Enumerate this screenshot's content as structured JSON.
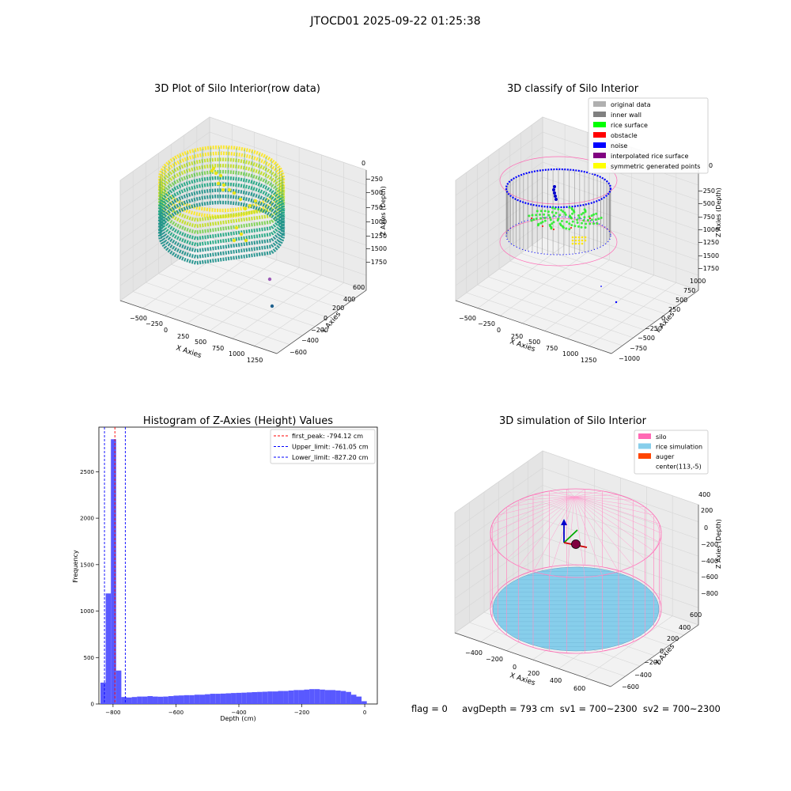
{
  "suptitle": "JTOCD01 2025-09-22 01:25:38",
  "status_text": "flag = 0     avgDepth = 793 cm  sv1 = 700~2300  sv2 = 700~2300",
  "colors": {
    "viridis_low": "#21918c",
    "viridis_mid": "#5ec962",
    "viridis_high": "#fde725",
    "hist_bar": "#5050ff",
    "silo": "#ff69b4",
    "rice_sim": "#87ceeb",
    "auger": "#ff4500"
  },
  "chart_data": [
    {
      "type": "scatter",
      "projection": "3d",
      "title": "3D Plot of Silo Interior(row data)",
      "xlabel": "X Axies",
      "ylabel": "Y Axies",
      "zlabel": "Z Axies (Depth)",
      "xticks": [
        "−500",
        "−250",
        "0",
        "250",
        "500",
        "750",
        "1000",
        "1250"
      ],
      "yticks": [
        "600",
        "400",
        "200",
        "0",
        "−200",
        "−400",
        "−600"
      ],
      "zticks": [
        "0",
        "−250",
        "−500",
        "−750",
        "−1000",
        "−1250",
        "−1500",
        "−1750"
      ],
      "colormap": "viridis",
      "grid": true
    },
    {
      "type": "scatter",
      "projection": "3d",
      "title": "3D classify of Silo Interior",
      "xlabel": "X Axies",
      "ylabel": "Y Axies",
      "zlabel": "Z Axies (Depth)",
      "xticks": [
        "−500",
        "−250",
        "0",
        "250",
        "500",
        "750",
        "1000",
        "1250"
      ],
      "yticks": [
        "1000",
        "750",
        "500",
        "250",
        "0",
        "−250",
        "−500",
        "−750",
        "−1000"
      ],
      "zticks": [
        "0",
        "−250",
        "−500",
        "−750",
        "−1000",
        "−1250",
        "−1500",
        "−1750"
      ],
      "legend": [
        {
          "name": "original data",
          "color": "#b0b0b0"
        },
        {
          "name": "inner wall",
          "color": "#808080"
        },
        {
          "name": "rice surface",
          "color": "#00ff00"
        },
        {
          "name": "obstacle",
          "color": "#ff0000"
        },
        {
          "name": "noise",
          "color": "#0000ff"
        },
        {
          "name": "interpolated rice surface",
          "color": "#800080"
        },
        {
          "name": "symmetric generated points",
          "color": "#ffff00"
        }
      ],
      "legend_position": "top-right",
      "grid": true
    },
    {
      "type": "bar",
      "title": "Histogram of Z-Axies (Height) Values",
      "xlabel": "Depth (cm)",
      "ylabel": "Frequency",
      "xlim": [
        -845,
        40
      ],
      "ylim": [
        0,
        2980
      ],
      "bin_width": 16.6,
      "bins_left": [
        -840,
        -823.4,
        -806.8,
        -790.2,
        -773.6,
        -757,
        -740.4,
        -723.8,
        -707.2,
        -690.6,
        -674,
        -657.4,
        -640.8,
        -624.2,
        -607.6,
        -591,
        -574.4,
        -557.8,
        -541.2,
        -524.6,
        -508,
        -491.4,
        -474.8,
        -458.2,
        -441.6,
        -425,
        -408.4,
        -391.8,
        -375.2,
        -358.6,
        -342,
        -325.4,
        -308.8,
        -292.2,
        -275.6,
        -259,
        -242.4,
        -225.8,
        -209.2,
        -192.6,
        -176,
        -159.4,
        -142.8,
        -126.2,
        -109.6,
        -93,
        -76.4,
        -59.8,
        -43.2,
        -26.6,
        -10
      ],
      "values": [
        230,
        1190,
        2850,
        360,
        75,
        70,
        75,
        80,
        80,
        85,
        80,
        78,
        80,
        85,
        90,
        92,
        95,
        95,
        100,
        100,
        105,
        110,
        110,
        112,
        115,
        118,
        120,
        122,
        125,
        128,
        130,
        132,
        135,
        135,
        140,
        140,
        145,
        150,
        150,
        155,
        160,
        160,
        155,
        150,
        150,
        145,
        140,
        130,
        100,
        80,
        30
      ],
      "xticks": [
        -800,
        -600,
        -400,
        -200,
        0
      ],
      "yticks": [
        0,
        500,
        1000,
        1500,
        2000,
        2500
      ],
      "vlines": [
        {
          "name": "first_peak: -794.12 cm",
          "x": -794.12,
          "color": "#ff0000"
        },
        {
          "name": "Upper_limit: -761.05 cm",
          "x": -761.05,
          "color": "#0000ff"
        },
        {
          "name": "Lower_limit: -827.20 cm",
          "x": -827.2,
          "color": "#0000ff"
        }
      ],
      "legend_position": "top-right",
      "grid": false
    },
    {
      "type": "scatter",
      "projection": "3d",
      "title": "3D simulation of Silo Interior",
      "xlabel": "X Axies",
      "ylabel": "Y Axies",
      "zlabel": "Z Axies (Depth)",
      "xticks": [
        "−400",
        "−200",
        "0",
        "200",
        "400",
        "600"
      ],
      "yticks": [
        "600",
        "400",
        "200",
        "0",
        "−200",
        "−400",
        "−600"
      ],
      "zticks": [
        "400",
        "200",
        "0",
        "−200",
        "−400",
        "−600",
        "−800"
      ],
      "legend": [
        {
          "name": "silo",
          "color": "#ff69b4"
        },
        {
          "name": "rice simulation",
          "color": "#87ceeb"
        },
        {
          "name": "auger",
          "color": "#ff4500"
        },
        {
          "name": "center(113,-5)",
          "color": ""
        }
      ],
      "legend_position": "top-right",
      "grid": true
    }
  ]
}
